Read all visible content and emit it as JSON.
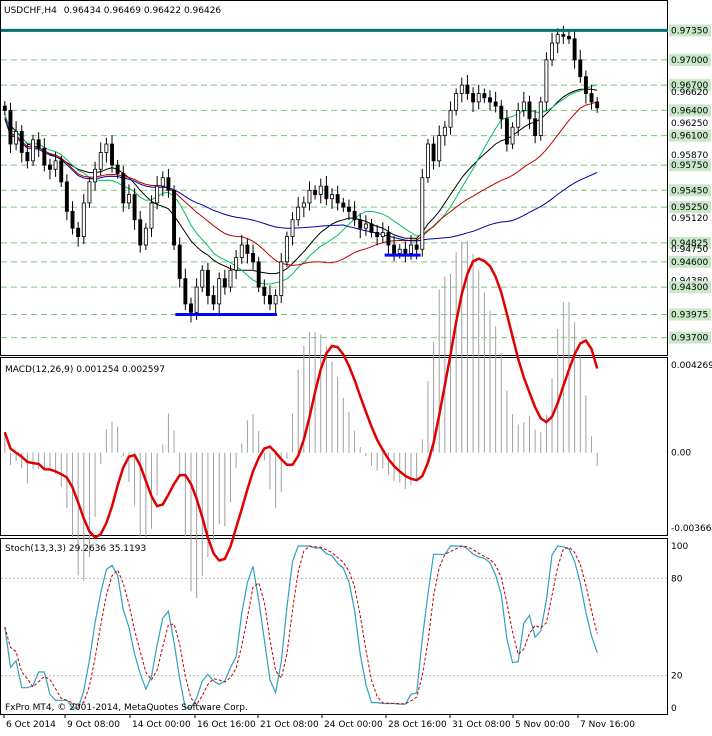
{
  "header": {
    "symbol": "USDCHF,H4",
    "ohlc": "0.96434 0.96469 0.96422 0.96426"
  },
  "macd": {
    "label": "MACD(12,26,9) 0.001254 0.002597"
  },
  "stoch": {
    "label": "Stoch(13,3,3) 29.2636 35.1193"
  },
  "footer": {
    "copyright": "FxPro MT4, © 2001-2014, MetaQuotes Software Corp."
  },
  "colors": {
    "background": "#ffffff",
    "bull_candle": "#ffffff",
    "bear_candle": "#000000",
    "ma_fast": "#000000",
    "ma_green": "#00c060",
    "ma_red": "#c00000",
    "ma_blue": "#0000a0",
    "support_line": "#0000ff",
    "resistance_line": "#007070",
    "macd_signal": "#e00000",
    "macd_hist": "#a0a0a0",
    "stoch_main": "#30a0c0",
    "stoch_signal": "#c00000",
    "level_grid": "#80c080"
  },
  "chart_data": [
    {
      "type": "candlestick",
      "title": "USDCHF,H4",
      "ylim": [
        0.936,
        0.9745
      ],
      "price_levels": [
        "0.97350",
        "0.97000",
        "0.96700",
        "0.96620",
        "0.96400",
        "0.96250",
        "0.96100",
        "0.95870",
        "0.95750",
        "0.95450",
        "0.95250",
        "0.95120",
        "0.94825",
        "0.94750",
        "0.94600",
        "0.94380",
        "0.94300",
        "0.93975",
        "0.93700"
      ],
      "highlighted_levels": [
        "0.97350",
        "0.97000",
        "0.96700",
        "0.96400",
        "0.96100",
        "0.95750",
        "0.95450",
        "0.95250",
        "0.94825",
        "0.94600",
        "0.94300",
        "0.93975",
        "0.93700"
      ],
      "resistance": 0.9735,
      "supports": [
        {
          "from": "14 Oct 00:00",
          "to": "21 Oct 08:00",
          "value": 0.93975
        },
        {
          "from": "28 Oct 00:00",
          "to": "28 Oct 16:00",
          "value": 0.9468
        }
      ],
      "x_labels": [
        "6 Oct 2014",
        "9 Oct 08:00",
        "14 Oct 00:00",
        "16 Oct 16:00",
        "21 Oct 08:00",
        "24 Oct 00:00",
        "28 Oct 16:00",
        "31 Oct 08:00",
        "5 Nov 00:00",
        "7 Nov 16:00"
      ],
      "close": [
        0.964,
        0.96,
        0.9615,
        0.959,
        0.958,
        0.9605,
        0.9595,
        0.9575,
        0.957,
        0.958,
        0.9555,
        0.952,
        0.95,
        0.949,
        0.953,
        0.9555,
        0.957,
        0.959,
        0.96,
        0.9575,
        0.9565,
        0.953,
        0.954,
        0.951,
        0.948,
        0.95,
        0.953,
        0.955,
        0.956,
        0.9545,
        0.948,
        0.944,
        0.941,
        0.94,
        0.943,
        0.945,
        0.942,
        0.941,
        0.944,
        0.943,
        0.945,
        0.9465,
        0.948,
        0.947,
        0.946,
        0.943,
        0.942,
        0.941,
        0.942,
        0.946,
        0.949,
        0.951,
        0.9525,
        0.953,
        0.9545,
        0.954,
        0.955,
        0.9535,
        0.954,
        0.953,
        0.9525,
        0.952,
        0.951,
        0.95,
        0.9505,
        0.9495,
        0.949,
        0.9495,
        0.948,
        0.947,
        0.9475,
        0.947,
        0.948,
        0.9475,
        0.956,
        0.96,
        0.958,
        0.961,
        0.962,
        0.964,
        0.966,
        0.967,
        0.966,
        0.965,
        0.966,
        0.9655,
        0.965,
        0.9645,
        0.963,
        0.96,
        0.962,
        0.964,
        0.965,
        0.963,
        0.961,
        0.965,
        0.97,
        0.972,
        0.973,
        0.9728,
        0.9725,
        0.97,
        0.968,
        0.966,
        0.965,
        0.9643
      ],
      "ma_fast": [
        0.963,
        0.9622,
        0.9615,
        0.9608,
        0.96,
        0.9598,
        0.9596,
        0.9592,
        0.9588,
        0.9585,
        0.9582,
        0.9578,
        0.9574,
        0.957,
        0.9568,
        0.9566,
        0.9566,
        0.9567,
        0.957,
        0.9572,
        0.957,
        0.9565,
        0.956,
        0.9553,
        0.9545,
        0.9538,
        0.9532,
        0.9528,
        0.9526,
        0.9523,
        0.9515,
        0.9505,
        0.9495,
        0.9485,
        0.9478,
        0.9472,
        0.9468,
        0.9462,
        0.9458,
        0.9455,
        0.9452,
        0.945,
        0.945,
        0.945,
        0.945,
        0.9448,
        0.9447,
        0.9446,
        0.9446,
        0.9448,
        0.9452,
        0.9458,
        0.9465,
        0.9472,
        0.948,
        0.9488,
        0.9495,
        0.95,
        0.9505,
        0.9508,
        0.951,
        0.9512,
        0.9512,
        0.951,
        0.9508,
        0.9505,
        0.9502,
        0.95,
        0.9496,
        0.9492,
        0.949,
        0.9488,
        0.9488,
        0.9488,
        0.9495,
        0.9505,
        0.9512,
        0.952,
        0.953,
        0.954,
        0.955,
        0.956,
        0.9568,
        0.9575,
        0.9582,
        0.9588,
        0.9594,
        0.96,
        0.9604,
        0.9606,
        0.961,
        0.9615,
        0.962,
        0.9624,
        0.9626,
        0.963,
        0.9636,
        0.9643,
        0.965,
        0.9656,
        0.966,
        0.9663,
        0.9665,
        0.9665,
        0.9665,
        0.9664
      ]
    },
    {
      "type": "histogram+line",
      "title": "MACD(12,26,9) 0.001254 0.002597",
      "ylim": [
        -0.003664,
        0.004269
      ],
      "tick_labels": [
        "0.004269",
        "0.00",
        "-0.003664"
      ]
    },
    {
      "type": "line",
      "title": "Stoch(13,3,3) 29.2636 35.1193",
      "ylim": [
        0,
        100
      ],
      "tick_labels": [
        "100",
        "80",
        "20",
        "0"
      ]
    }
  ]
}
